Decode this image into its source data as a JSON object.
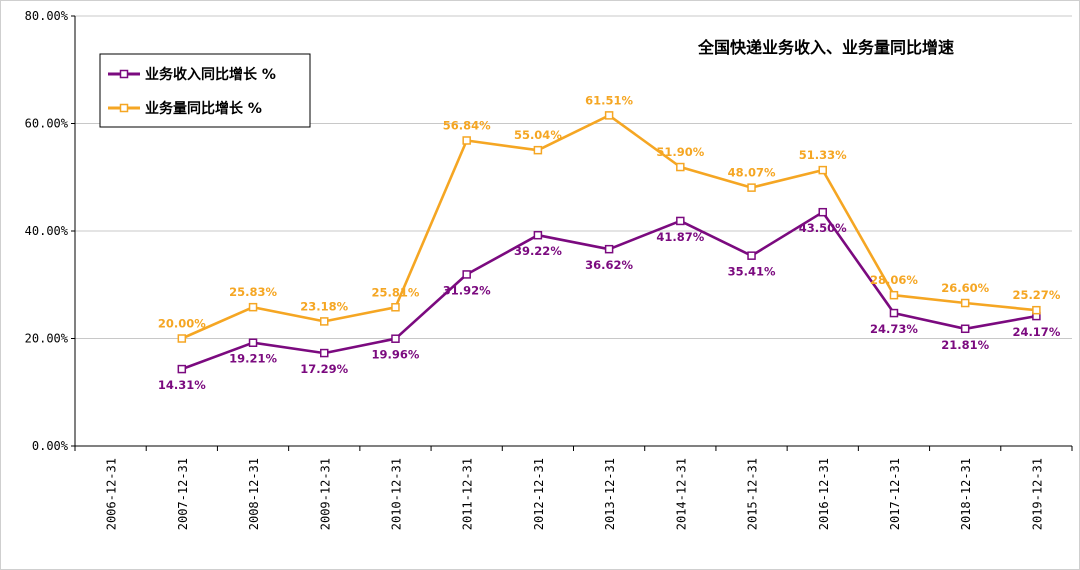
{
  "chart_data": {
    "type": "line",
    "title": "全国快递业务收入、业务量同比增速",
    "categories": [
      "2006-12-31",
      "2007-12-31",
      "2008-12-31",
      "2009-12-31",
      "2010-12-31",
      "2011-12-31",
      "2012-12-31",
      "2013-12-31",
      "2014-12-31",
      "2015-12-31",
      "2016-12-31",
      "2017-12-31",
      "2018-12-31",
      "2019-12-31"
    ],
    "ylim": [
      0,
      80
    ],
    "yticks": [
      "0.00%",
      "20.00%",
      "40.00%",
      "60.00%",
      "80.00%"
    ],
    "ytick_values": [
      0,
      20,
      40,
      60,
      80
    ],
    "legend_position": "top-left",
    "series": [
      {
        "name": "业务收入同比增长 %",
        "color": "#7B0A7F",
        "values": [
          null,
          14.31,
          19.21,
          17.29,
          19.96,
          31.92,
          39.22,
          36.62,
          41.87,
          35.41,
          43.5,
          24.73,
          21.81,
          24.17
        ],
        "labels": [
          null,
          "14.31%",
          "19.21%",
          "17.29%",
          "19.96%",
          "31.92%",
          "39.22%",
          "36.62%",
          "41.87%",
          "35.41%",
          "43.50%",
          "24.73%",
          "21.81%",
          "24.17%"
        ]
      },
      {
        "name": "业务量同比增长 %",
        "color": "#F5A623",
        "values": [
          null,
          20.0,
          25.83,
          23.18,
          25.81,
          56.84,
          55.04,
          61.51,
          51.9,
          48.07,
          51.33,
          28.06,
          26.6,
          25.27
        ],
        "labels": [
          null,
          "20.00%",
          "25.83%",
          "23.18%",
          "25.81%",
          "56.84%",
          "55.04%",
          "61.51%",
          "51.90%",
          "48.07%",
          "51.33%",
          "28.06%",
          "26.60%",
          "25.27%"
        ]
      }
    ]
  }
}
